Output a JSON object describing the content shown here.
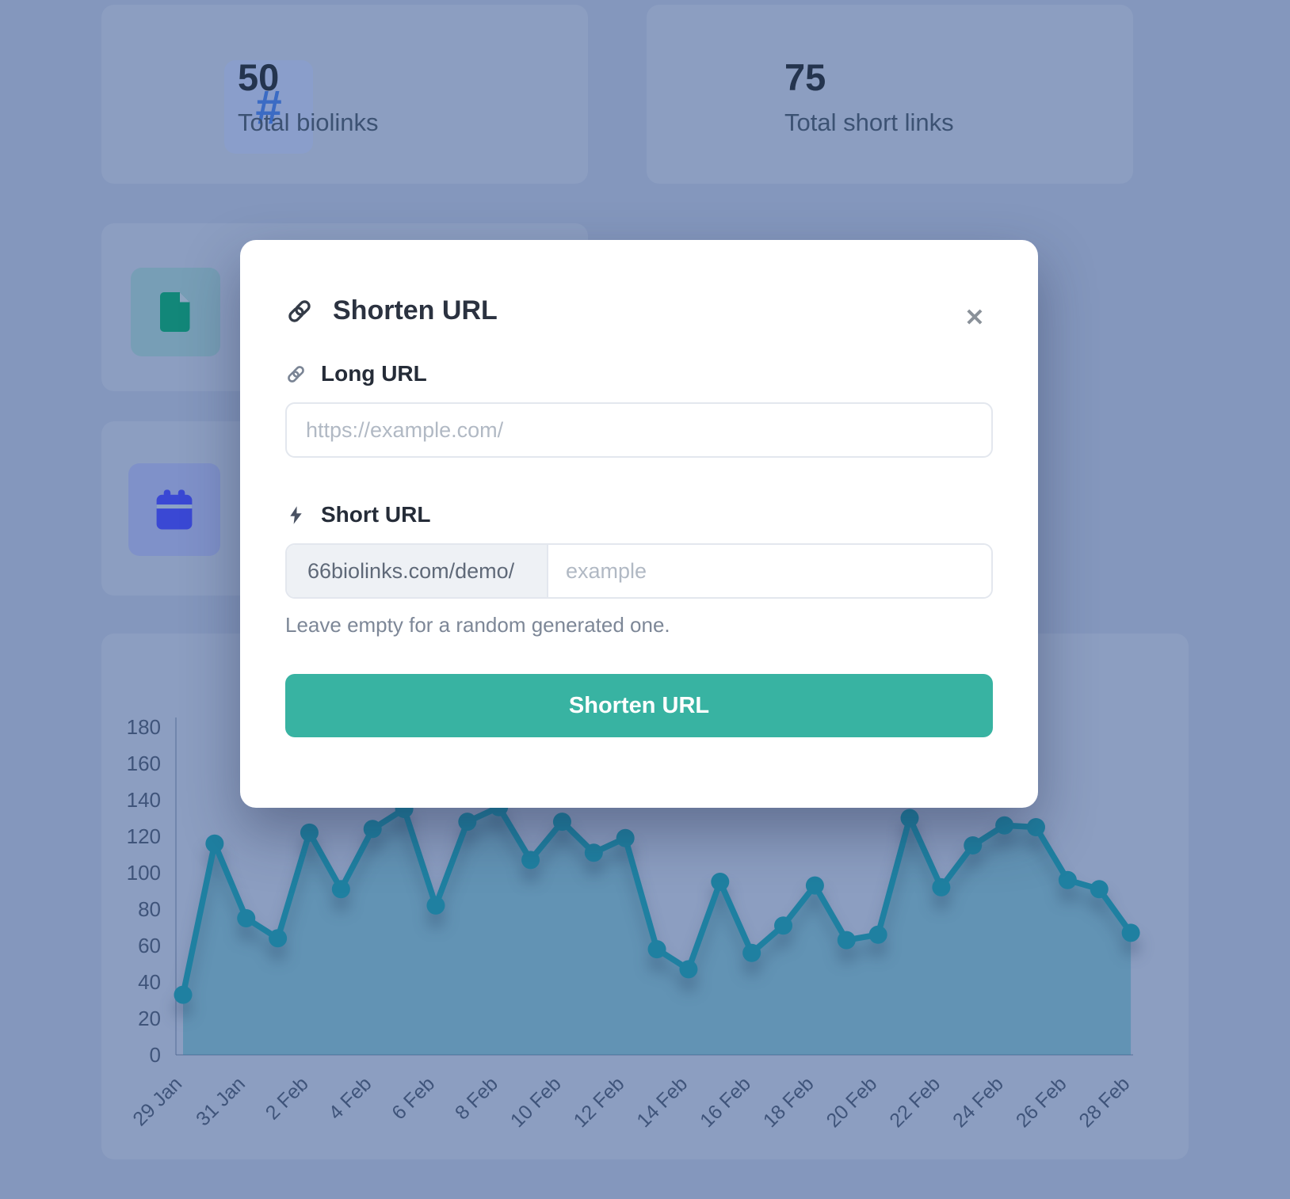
{
  "stats": [
    {
      "icon": "hash-icon",
      "value": "50",
      "label": "Total biolinks"
    },
    {
      "icon": "link-icon",
      "value": "75",
      "label": "Total short links"
    }
  ],
  "side_tiles": [
    {
      "icon": "document-icon"
    },
    {
      "icon": "calendar-icon"
    }
  ],
  "modal": {
    "title": "Shorten URL",
    "close_label": "✕",
    "long_url": {
      "label": "Long URL",
      "placeholder": "https://example.com/"
    },
    "short_url": {
      "label": "Short URL",
      "prefix": "66biolinks.com/demo/",
      "placeholder": "example",
      "helper": "Leave empty for a random generated one."
    },
    "submit_label": "Shorten URL"
  },
  "chart_data": {
    "type": "area",
    "x": [
      "29 Jan",
      "30 Jan",
      "31 Jan",
      "1 Feb",
      "2 Feb",
      "3 Feb",
      "4 Feb",
      "5 Feb",
      "6 Feb",
      "7 Feb",
      "8 Feb",
      "9 Feb",
      "10 Feb",
      "11 Feb",
      "12 Feb",
      "13 Feb",
      "14 Feb",
      "15 Feb",
      "16 Feb",
      "17 Feb",
      "18 Feb",
      "19 Feb",
      "20 Feb",
      "21 Feb",
      "22 Feb",
      "23 Feb",
      "24 Feb",
      "25 Feb",
      "26 Feb",
      "27 Feb",
      "28 Feb"
    ],
    "values": [
      33,
      116,
      75,
      64,
      122,
      91,
      124,
      135,
      82,
      128,
      136,
      107,
      128,
      111,
      119,
      58,
      47,
      95,
      56,
      71,
      93,
      63,
      66,
      130,
      92,
      115,
      126,
      125,
      96,
      91,
      67
    ],
    "y_ticks": [
      0,
      20,
      40,
      60,
      80,
      100,
      120,
      140,
      160,
      180
    ],
    "ylim": [
      0,
      180
    ],
    "x_label_step": 2,
    "grid": false,
    "legend": "none",
    "title": "",
    "xlabel": "",
    "ylabel": ""
  },
  "colors": {
    "backdrop": "#8497bd",
    "accent_button": "#38b3a2",
    "chart_line": "#1f80a1",
    "chart_fill_opacity": 0.38,
    "hash_icon": "#3b6bc4",
    "shortlink_icon": "#1aa392",
    "document_icon": "#128779",
    "calendar_icon": "#3a48d4"
  }
}
